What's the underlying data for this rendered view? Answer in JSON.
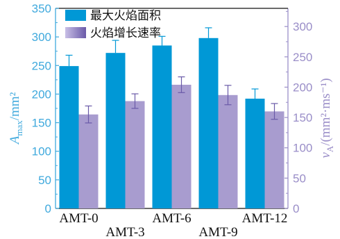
{
  "chart_data": {
    "type": "bar",
    "categories": [
      "AMT-0",
      "AMT-3",
      "AMT-6",
      "AMT-9",
      "AMT-12"
    ],
    "series": [
      {
        "name": "最大火焰面积",
        "axis": "left",
        "color": "#0098d6",
        "values": [
          249,
          272,
          285,
          298,
          192
        ],
        "errors": [
          19,
          22,
          16,
          18,
          17
        ]
      },
      {
        "name": "火焰增长速率",
        "axis": "right",
        "color": "#a89ccf",
        "values": [
          155,
          177,
          204,
          187,
          160
        ],
        "errors": [
          14,
          12,
          13,
          16,
          13
        ]
      }
    ],
    "y_left": {
      "label_main": "A",
      "label_sub": "max",
      "label_unit": "/mm²",
      "lim": [
        0,
        350
      ],
      "ticks": [
        "0",
        "50",
        "100",
        "150",
        "200",
        "250",
        "300",
        "350"
      ]
    },
    "y_right": {
      "label_main": "v",
      "label_sub": "A",
      "label_unit": "/(mm²·ms⁻¹)",
      "lim": [
        0,
        330
      ],
      "ticks": [
        "0",
        "50",
        "100",
        "150",
        "200",
        "250",
        "300"
      ]
    },
    "legend_position": "top-left",
    "grid": false
  }
}
